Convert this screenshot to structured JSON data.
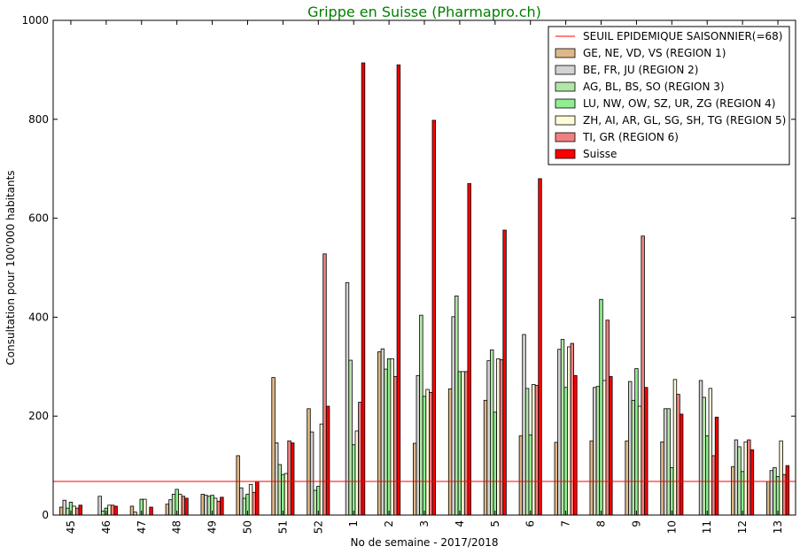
{
  "chart_data": {
    "type": "bar",
    "title": "Grippe en Suisse (Pharmapro.ch)",
    "xlabel": "No de semaine - 2017/2018",
    "ylabel": "Consultation pour 100'000 habitants",
    "ylim": [
      0,
      1000
    ],
    "yticks": [
      "0",
      "200",
      "400",
      "600",
      "800",
      "1000"
    ],
    "categories": [
      "45",
      "46",
      "47",
      "48",
      "49",
      "50",
      "51",
      "52",
      "1",
      "2",
      "3",
      "4",
      "5",
      "6",
      "7",
      "8",
      "9",
      "10",
      "11",
      "12",
      "13"
    ],
    "threshold": {
      "name": "SEUIL EPIDEMIQUE SAISONNIER(=68)",
      "value": 68,
      "color": "#ff0000"
    },
    "legend_position": "top-right",
    "series": [
      {
        "name": "GE, NE, VD, VS (REGION 1)",
        "color": "#deb887",
        "values": [
          16,
          0,
          18,
          22,
          42,
          120,
          278,
          215,
          0,
          330,
          145,
          255,
          232,
          160,
          147,
          150,
          150,
          148,
          0,
          98,
          68
        ]
      },
      {
        "name": "BE, FR, JU (REGION 2)",
        "color": "#d3d3d3",
        "values": [
          30,
          38,
          6,
          31,
          40,
          55,
          146,
          168,
          470,
          336,
          282,
          401,
          312,
          365,
          335,
          258,
          270,
          215,
          272,
          152,
          90
        ]
      },
      {
        "name": "AG, BL, BS, SO (REGION 3)",
        "color": "#b2e6a8",
        "values": [
          14,
          8,
          0,
          42,
          38,
          34,
          102,
          50,
          313,
          295,
          404,
          443,
          334,
          256,
          355,
          260,
          232,
          215,
          238,
          138,
          96
        ]
      },
      {
        "name": "LU, NW, OW, SZ, UR, ZG (REGION 4)",
        "color": "#90ee90",
        "values": [
          26,
          14,
          32,
          52,
          40,
          42,
          82,
          58,
          142,
          316,
          240,
          290,
          208,
          162,
          258,
          436,
          296,
          96,
          160,
          88,
          78
        ]
      },
      {
        "name": "ZH, AI, AR, GL, SG, SH, TG (REGION 5)",
        "color": "#fffbd8",
        "values": [
          18,
          20,
          32,
          42,
          34,
          62,
          84,
          184,
          170,
          316,
          254,
          290,
          316,
          264,
          340,
          272,
          220,
          274,
          256,
          148,
          150
        ]
      },
      {
        "name": "TI, GR (REGION 6)",
        "color": "#f08080",
        "values": [
          14,
          20,
          0,
          38,
          28,
          46,
          150,
          528,
          228,
          280,
          248,
          290,
          314,
          262,
          347,
          394,
          564,
          244,
          120,
          152,
          82
        ]
      },
      {
        "name": "Suisse",
        "color": "#ff0000",
        "values": [
          20,
          18,
          16,
          34,
          36,
          68,
          146,
          220,
          914,
          910,
          798,
          670,
          576,
          680,
          282,
          280,
          258,
          204,
          198,
          132,
          100
        ]
      }
    ],
    "suisse_bars_extra": []
  }
}
